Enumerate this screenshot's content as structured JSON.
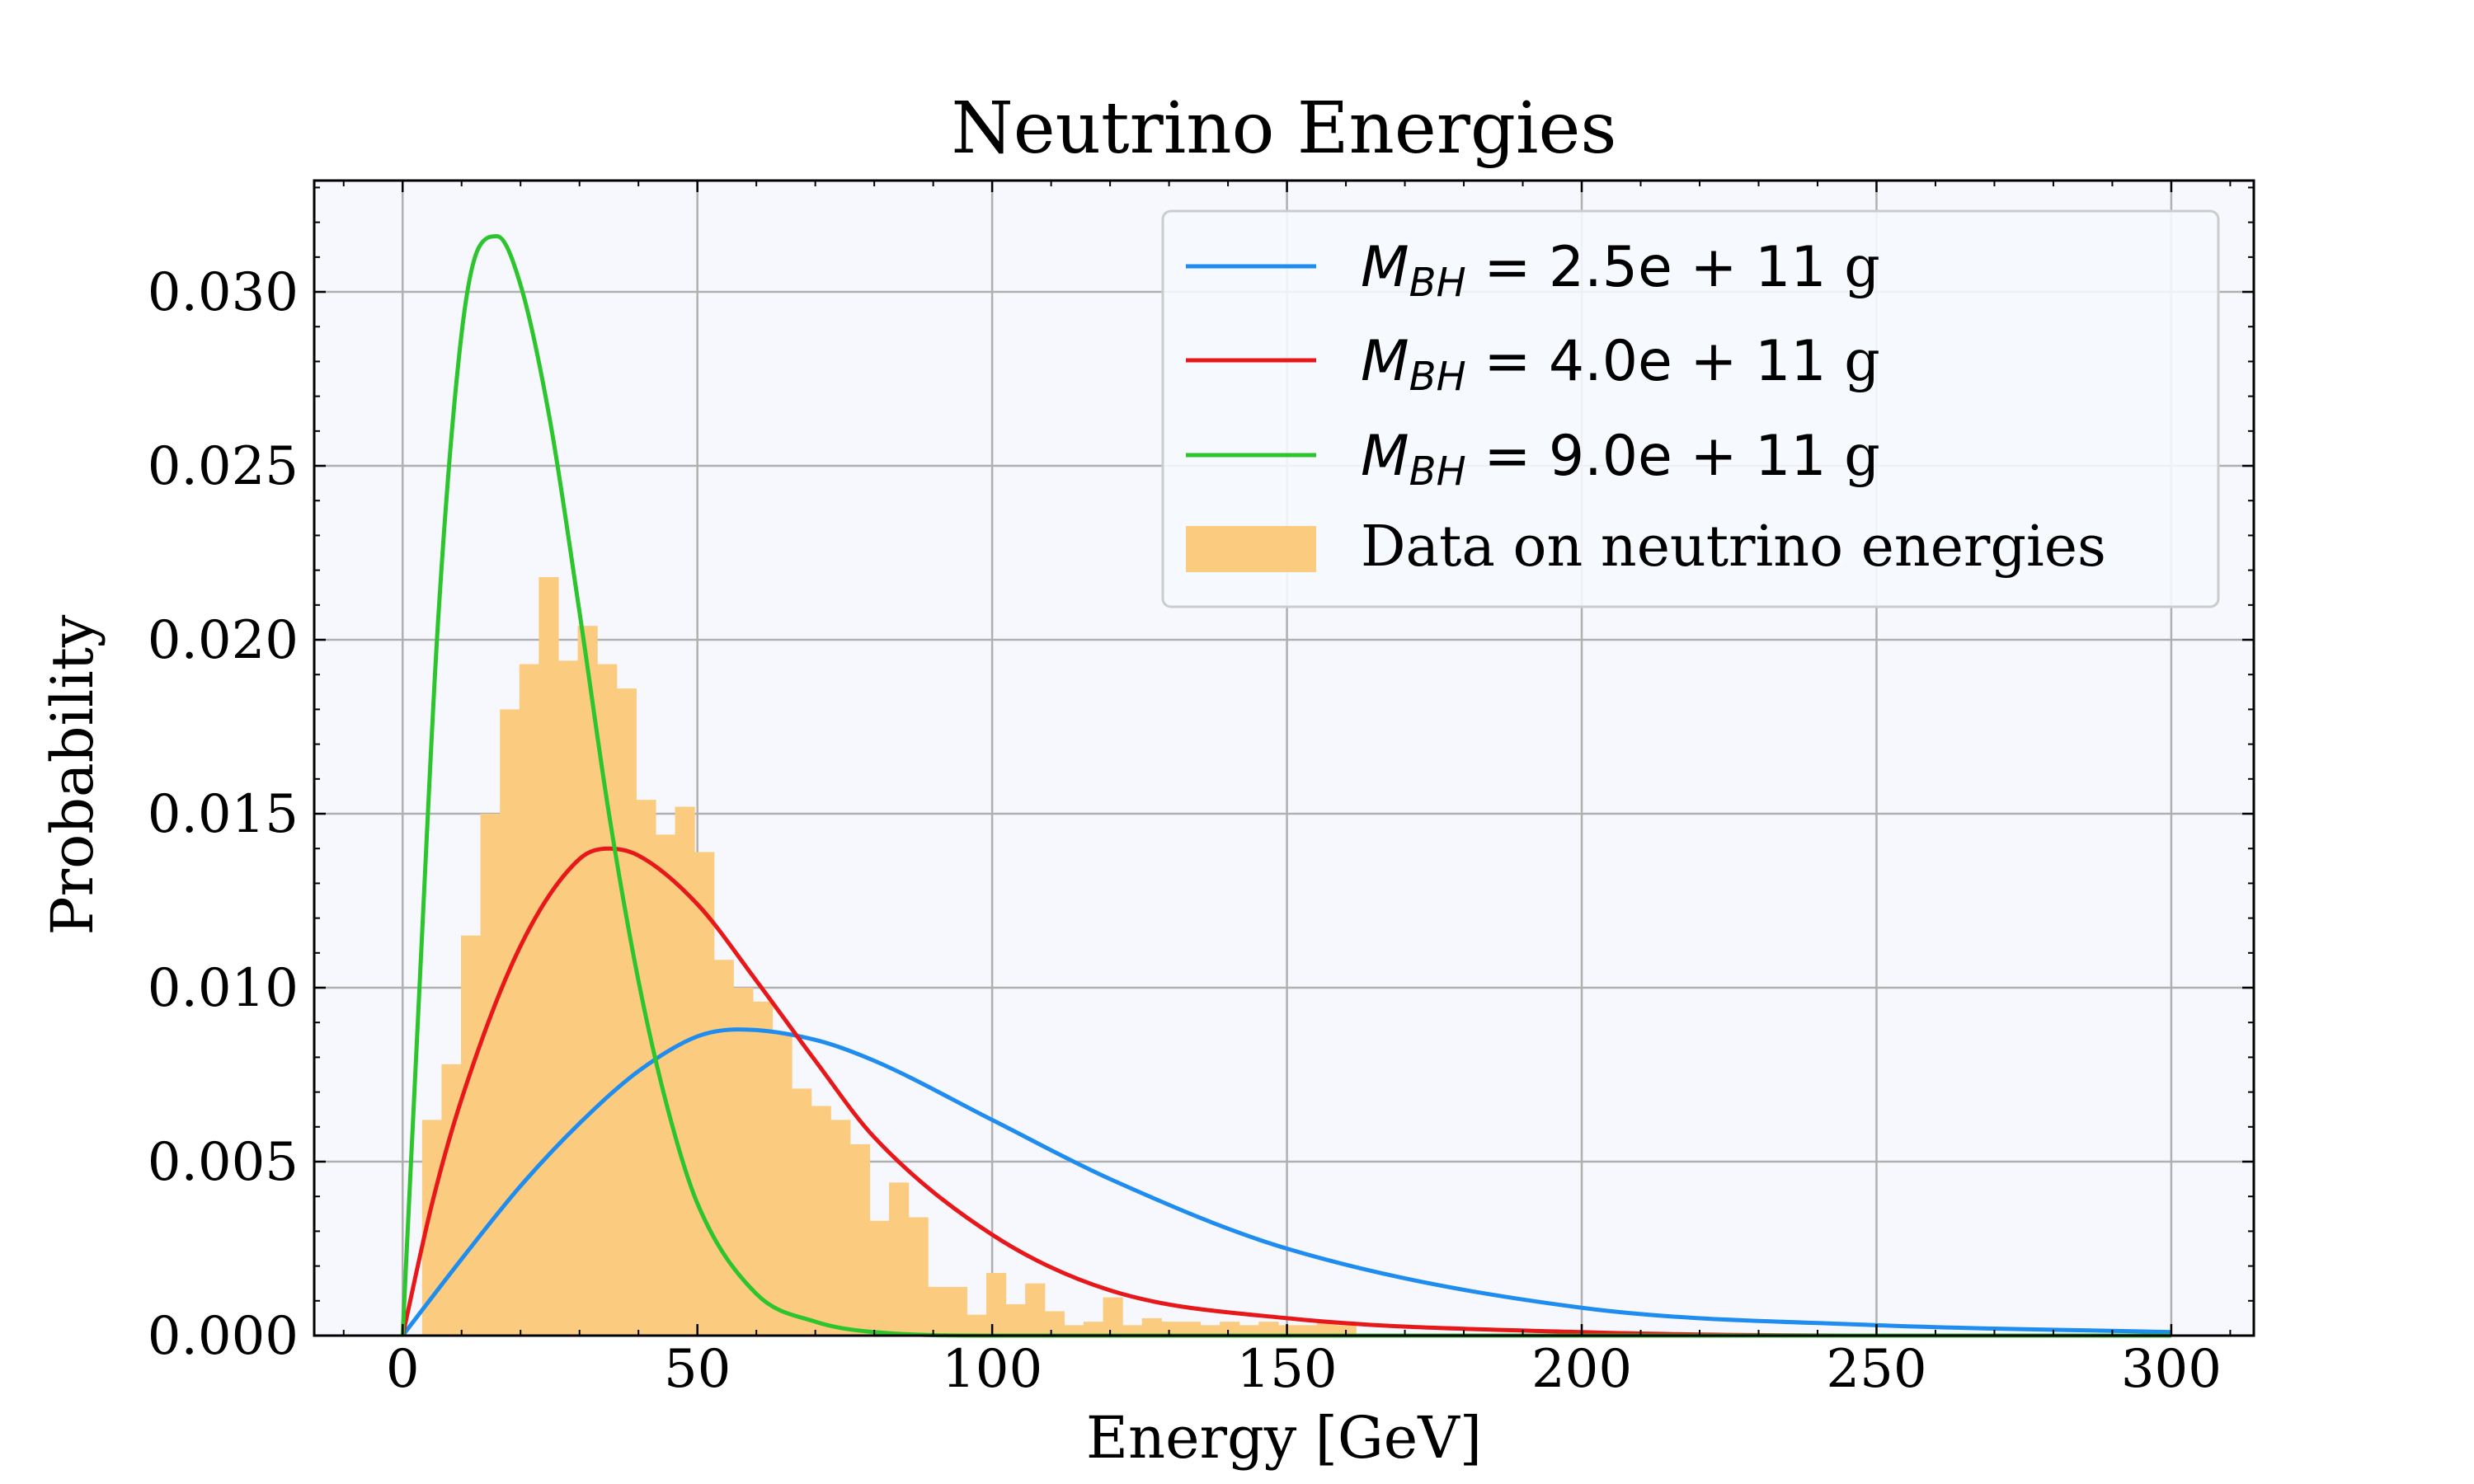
{
  "chart_data": {
    "type": "line",
    "title": "Neutrino Energies",
    "xlabel": "Energy [GeV]",
    "ylabel": "Probability",
    "xlim": [
      -15,
      314
    ],
    "ylim": [
      0,
      0.0332
    ],
    "xticks": [
      0,
      50,
      100,
      150,
      200,
      250,
      300
    ],
    "xtick_labels": [
      "0",
      "50",
      "100",
      "150",
      "200",
      "250",
      "300"
    ],
    "yticks": [
      0,
      0.005,
      0.01,
      0.015,
      0.02,
      0.025,
      0.03
    ],
    "ytick_labels": [
      "0.000",
      "0.005",
      "0.010",
      "0.015",
      "0.020",
      "0.025",
      "0.030"
    ],
    "grid": true,
    "legend_position": "top-right",
    "series": [
      {
        "name": "M_BH = 2.5e+11 g",
        "legend_math": "M_{BH} = 2.5e + 11",
        "legend_unit": "g",
        "color": "#1f8cf0",
        "x": [
          0,
          10,
          20,
          30,
          40,
          50,
          57,
          70,
          80,
          100,
          120,
          150,
          200,
          250,
          300
        ],
        "y": [
          0,
          0.0022,
          0.0043,
          0.0061,
          0.0076,
          0.0086,
          0.0088,
          0.0085,
          0.0079,
          0.0062,
          0.0045,
          0.0025,
          0.0008,
          0.0003,
          0.0001
        ]
      },
      {
        "name": "M_BH = 4.0e+11 g",
        "legend_math": "M_{BH} = 4.0e + 11",
        "legend_unit": "g",
        "color": "#e8171a",
        "x": [
          0,
          5,
          10,
          20,
          30,
          35,
          40,
          50,
          60,
          70,
          80,
          100,
          120,
          150,
          200,
          250,
          300
        ],
        "y": [
          0,
          0.0038,
          0.0068,
          0.0112,
          0.0137,
          0.014,
          0.0138,
          0.0124,
          0.0102,
          0.0079,
          0.0057,
          0.0029,
          0.0013,
          0.0005,
          0.0001,
          0.0,
          0.0
        ]
      },
      {
        "name": "M_BH = 9.0e+11 g",
        "legend_math": "M_{BH} = 9.0e + 11",
        "legend_unit": "g",
        "color": "#2dc52d",
        "x": [
          0,
          3,
          6,
          10,
          13,
          16,
          20,
          25,
          30,
          35,
          40,
          45,
          50,
          60,
          70,
          80,
          100,
          150,
          200,
          300
        ],
        "y": [
          0,
          0.0105,
          0.0205,
          0.0288,
          0.0313,
          0.0316,
          0.0302,
          0.0263,
          0.0208,
          0.015,
          0.0102,
          0.0065,
          0.0038,
          0.0012,
          0.0004,
          0.0001,
          0.0,
          0.0,
          0.0,
          0.0
        ]
      }
    ],
    "histogram": {
      "name": "Data on neutrino energies",
      "color": "#fbcc80",
      "bin_width": 3.3,
      "bin_start": 3.3,
      "values": [
        0.0062,
        0.0078,
        0.0115,
        0.015,
        0.018,
        0.0193,
        0.0218,
        0.0194,
        0.0204,
        0.0193,
        0.0186,
        0.0154,
        0.0144,
        0.0152,
        0.0139,
        0.0108,
        0.01,
        0.0096,
        0.0087,
        0.0071,
        0.0066,
        0.0062,
        0.0055,
        0.0033,
        0.0044,
        0.0034,
        0.0014,
        0.0014,
        0.0006,
        0.0018,
        0.0009,
        0.0015,
        0.0007,
        0.0003,
        0.0004,
        0.0011,
        0.0003,
        0.0005,
        0.0004,
        0.0004,
        0.0003,
        0.0004,
        0.0003,
        0.0004,
        0.0003,
        0.0003,
        0.0004,
        0.0003
      ]
    }
  }
}
